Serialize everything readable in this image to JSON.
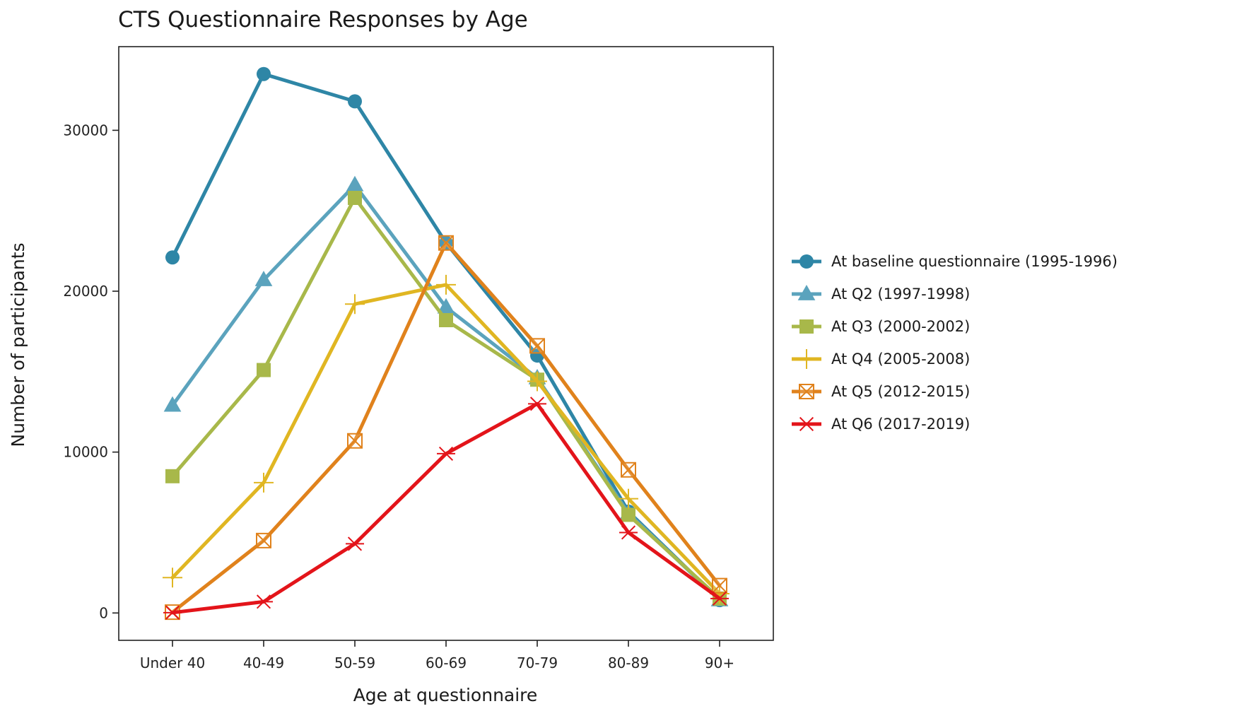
{
  "chart_data": {
    "type": "line",
    "title": "CTS Questionnaire Responses by Age",
    "xlabel": "Age at questionnaire",
    "ylabel": "Number of participants",
    "categories": [
      "Under 40",
      "40-49",
      "50-59",
      "60-69",
      "70-79",
      "80-89",
      "90+"
    ],
    "ylim": [
      -1700,
      35200
    ],
    "yticks": [
      0,
      10000,
      20000,
      30000
    ],
    "grid": false,
    "legend_position": "right",
    "series": [
      {
        "name": "At baseline questionnaire (1995-1996)",
        "color": "#2e86a6",
        "marker": "circle",
        "values": [
          22100,
          33500,
          31800,
          23000,
          16000,
          6300,
          800
        ]
      },
      {
        "name": "At Q2 (1997-1998)",
        "color": "#5ba3bd",
        "marker": "triangle",
        "values": [
          12900,
          20700,
          26600,
          19000,
          14600,
          6200,
          800
        ]
      },
      {
        "name": "At Q3 (2000-2002)",
        "color": "#a8b84a",
        "marker": "square",
        "values": [
          8500,
          15100,
          25800,
          18200,
          14500,
          6100,
          900
        ]
      },
      {
        "name": "At Q4 (2005-2008)",
        "color": "#e0b622",
        "marker": "plus",
        "values": [
          2200,
          8100,
          19200,
          20400,
          14400,
          7100,
          1200
        ]
      },
      {
        "name": "At Q5 (2012-2015)",
        "color": "#e0821c",
        "marker": "boxcross",
        "values": [
          50,
          4500,
          10700,
          23000,
          16600,
          8900,
          1700
        ]
      },
      {
        "name": "At Q6 (2017-2019)",
        "color": "#e3141a",
        "marker": "asterisk",
        "values": [
          20,
          700,
          4300,
          9900,
          13000,
          5000,
          900
        ]
      }
    ]
  }
}
